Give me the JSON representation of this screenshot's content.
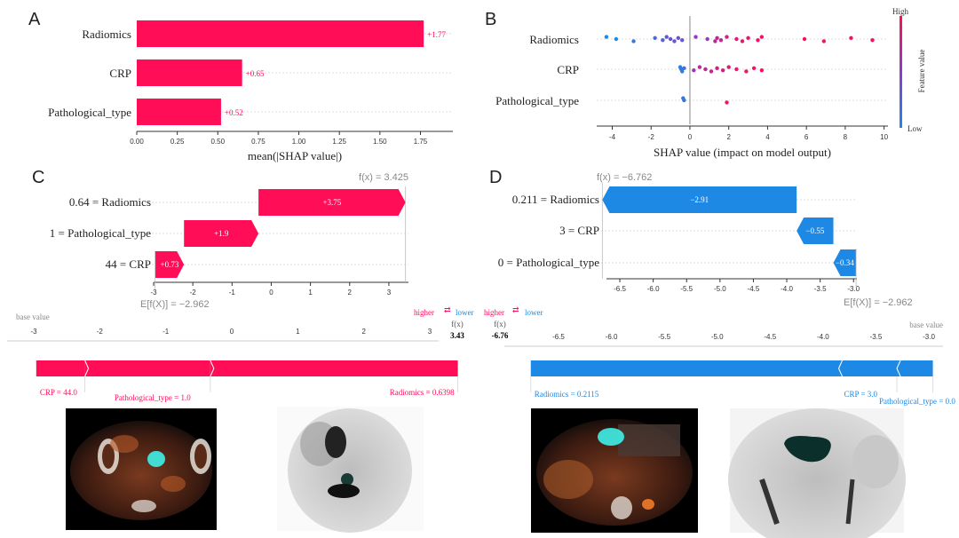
{
  "panels": {
    "a": "A",
    "b": "B",
    "c": "C",
    "d": "D"
  },
  "colors": {
    "pos": "#ff0d57",
    "neg": "#1e88e5",
    "grid": "#dddddd"
  },
  "chart_data": [
    {
      "panel": "A",
      "type": "bar",
      "orientation": "horizontal",
      "categories": [
        "Radiomics",
        "CRP",
        "Pathological_type"
      ],
      "values": [
        1.77,
        0.65,
        0.52
      ],
      "value_labels": [
        "+1.77",
        "+0.65",
        "+0.52"
      ],
      "xlabel": "mean(|SHAP value|)",
      "xlim": [
        0,
        1.95
      ],
      "xticks": [
        "0.00",
        "0.25",
        "0.50",
        "0.75",
        "1.00",
        "1.25",
        "1.50",
        "1.75"
      ]
    },
    {
      "panel": "B",
      "type": "scatter",
      "subtype": "beeswarm",
      "categories": [
        "Radiomics",
        "CRP",
        "Pathological_type"
      ],
      "xlabel": "SHAP value (impact on model output)",
      "colorbar_label": "Feature value",
      "colorbar_high": "High",
      "colorbar_low": "Low",
      "xlim": [
        -4.8,
        10.2
      ],
      "xticks": [
        "-4",
        "-2",
        "0",
        "2",
        "4",
        "6",
        "8",
        "10"
      ],
      "series": [
        {
          "points": [
            [
              -4.3,
              0.0
            ],
            [
              -3.8,
              0.0
            ],
            [
              -2.9,
              0.1
            ],
            [
              -1.8,
              0.2
            ],
            [
              -1.4,
              0.25
            ],
            [
              -1.2,
              0.3
            ],
            [
              -1.0,
              0.35
            ],
            [
              -0.8,
              0.35
            ],
            [
              -0.6,
              0.4
            ],
            [
              -0.4,
              0.3
            ],
            [
              0.3,
              0.55
            ],
            [
              0.9,
              0.55
            ],
            [
              1.3,
              0.7
            ],
            [
              1.4,
              0.72
            ],
            [
              1.6,
              0.75
            ],
            [
              1.9,
              0.8
            ],
            [
              2.4,
              0.85
            ],
            [
              2.7,
              0.87
            ],
            [
              3.0,
              0.9
            ],
            [
              3.5,
              0.92
            ],
            [
              3.7,
              0.93
            ],
            [
              5.9,
              0.97
            ],
            [
              6.9,
              0.98
            ],
            [
              8.3,
              0.99
            ],
            [
              9.4,
              1.0
            ]
          ]
        },
        {
          "points": [
            [
              -0.5,
              0.05
            ],
            [
              -0.45,
              0.1
            ],
            [
              -0.4,
              0.1
            ],
            [
              -0.3,
              0.15
            ],
            [
              0.2,
              0.6
            ],
            [
              0.5,
              0.7
            ],
            [
              0.8,
              0.72
            ],
            [
              1.1,
              0.78
            ],
            [
              1.4,
              0.8
            ],
            [
              1.7,
              0.82
            ],
            [
              2.0,
              0.85
            ],
            [
              2.4,
              0.9
            ],
            [
              2.9,
              0.95
            ],
            [
              3.3,
              0.97
            ],
            [
              3.7,
              1.0
            ]
          ]
        },
        {
          "points": [
            [
              -0.35,
              0.1
            ],
            [
              -0.3,
              0.15
            ],
            [
              1.9,
              0.95
            ]
          ]
        }
      ]
    },
    {
      "panel": "C",
      "type": "bar",
      "subtype": "waterfall",
      "base_value_label": "E[f(X)] = −2.962",
      "output_label": "f(x) = 3.425",
      "rows": [
        {
          "label": "0.64 = Radiomics",
          "start": -0.325,
          "end": 3.425,
          "value_label": "+3.75"
        },
        {
          "label": "1 = Pathological_type",
          "start": -2.225,
          "end": -0.325,
          "value_label": "+1.9"
        },
        {
          "label": "44 = CRP",
          "start": -2.962,
          "end": -2.225,
          "value_label": "+0.73"
        }
      ],
      "xticks": [
        "-3",
        "-2",
        "-1",
        "0",
        "1",
        "2",
        "3"
      ]
    },
    {
      "panel": "D",
      "type": "bar",
      "subtype": "waterfall",
      "base_value_label": "E[f(X)] = −2.962",
      "output_label": "f(x) = −6.762",
      "rows": [
        {
          "label": "0.211 = Radiomics",
          "start": -3.852,
          "end": -6.762,
          "value_label": "−2.91"
        },
        {
          "label": "3 = CRP",
          "start": -3.302,
          "end": -3.852,
          "value_label": "−0.55"
        },
        {
          "label": "0 = Pathological_type",
          "start": -2.962,
          "end": -3.302,
          "value_label": "−0.34"
        }
      ],
      "xticks": [
        "-6.5",
        "-6.0",
        "-5.5",
        "-5.0",
        "-4.5",
        "-4.0",
        "-3.5",
        "-3.0"
      ]
    },
    {
      "panel": "C-force",
      "type": "bar",
      "subtype": "force",
      "base_value": "base value",
      "higher": "higher",
      "lower": "lower",
      "fx": "f(x)",
      "fx_value": "3.43",
      "xticks": [
        "-3",
        "-2",
        "-1",
        "0",
        "1",
        "2",
        "3"
      ],
      "segments": [
        {
          "label": "CRP = 44.0",
          "start": -2.962,
          "end": -2.225
        },
        {
          "label": "Pathological_type = 1.0",
          "start": -2.225,
          "end": -0.325
        },
        {
          "label": "Radiomics = 0.6398",
          "start": -0.325,
          "end": 3.425
        }
      ]
    },
    {
      "panel": "D-force",
      "type": "bar",
      "subtype": "force",
      "base_value": "base value",
      "higher": "higher",
      "lower": "lower",
      "fx": "f(x)",
      "fx_value": "-6.76",
      "xticks": [
        "-6.5",
        "-6.0",
        "-5.5",
        "-5.0",
        "-4.5",
        "-4.0",
        "-3.5",
        "-3.0"
      ],
      "segments": [
        {
          "label": "Radiomics = 0.2115",
          "start": -6.762,
          "end": -3.852
        },
        {
          "label": "CRP = 3.0",
          "start": -3.852,
          "end": -3.302
        },
        {
          "label": "Pathological_type = 0.0",
          "start": -3.302,
          "end": -2.962
        }
      ]
    }
  ]
}
